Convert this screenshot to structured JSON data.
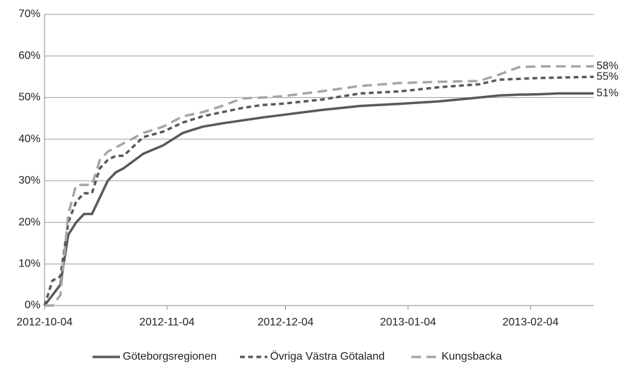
{
  "chart_data": {
    "type": "line",
    "x": [
      "2012-10-04",
      "2012-10-06",
      "2012-10-08",
      "2012-10-10",
      "2012-10-12",
      "2012-10-14",
      "2012-10-16",
      "2012-10-18",
      "2012-10-20",
      "2012-10-22",
      "2012-10-24",
      "2012-10-29",
      "2012-11-03",
      "2012-11-08",
      "2012-11-13",
      "2012-11-18",
      "2012-11-23",
      "2012-11-28",
      "2012-12-03",
      "2012-12-13",
      "2012-12-23",
      "2013-01-02",
      "2013-01-12",
      "2013-01-22",
      "2013-01-27",
      "2013-02-01",
      "2013-02-06",
      "2013-02-11",
      "2013-02-20"
    ],
    "series": [
      {
        "name": "Göteborgsregionen",
        "color": "#595959",
        "dash": "solid",
        "values": [
          0,
          2.5,
          5,
          17,
          20,
          22,
          22,
          26,
          30,
          32,
          33,
          36.5,
          38.5,
          41.5,
          43,
          43.8,
          44.5,
          45.2,
          45.8,
          47,
          48,
          48.5,
          49.1,
          50,
          50.5,
          50.7,
          50.8,
          51,
          51
        ]
      },
      {
        "name": "Övriga Västra Götaland",
        "color": "#595959",
        "dash": "dashed",
        "values": [
          0,
          6,
          7,
          20,
          25,
          27,
          27,
          33,
          35,
          36,
          36,
          40.5,
          41.8,
          44,
          45.5,
          46.5,
          47.5,
          48.2,
          48.5,
          49.5,
          51,
          51.5,
          52.5,
          53.2,
          54.3,
          54.5,
          54.7,
          54.8,
          55
        ]
      },
      {
        "name": "Kungsbacka",
        "color": "#a6a6a6",
        "dash": "long-dash",
        "values": [
          0,
          0,
          2.5,
          22,
          29,
          29,
          29,
          35,
          37,
          38,
          39,
          41.5,
          43,
          45.5,
          46.5,
          48,
          49.8,
          50,
          50.3,
          51.5,
          52.8,
          53.5,
          53.8,
          54,
          55.5,
          57.3,
          57.5,
          57.5,
          57.5
        ]
      }
    ],
    "annotations": [
      {
        "text": "58%",
        "x": "2013-02-20",
        "y": 57.5
      },
      {
        "text": "55%",
        "x": "2013-02-20",
        "y": 55
      },
      {
        "text": "51%",
        "x": "2013-02-20",
        "y": 51
      }
    ],
    "xlim": [
      "2012-10-04",
      "2013-02-20"
    ],
    "xticks": [
      "2012-10-04",
      "2012-11-04",
      "2012-12-04",
      "2013-01-04",
      "2013-02-04"
    ],
    "ylim": [
      0,
      70
    ],
    "yticks": [
      {
        "value": 0,
        "label": "0%"
      },
      {
        "value": 10,
        "label": "10%"
      },
      {
        "value": 20,
        "label": "20%"
      },
      {
        "value": 30,
        "label": "30%"
      },
      {
        "value": 40,
        "label": "40%"
      },
      {
        "value": 50,
        "label": "50%"
      },
      {
        "value": 60,
        "label": "60%"
      },
      {
        "value": 70,
        "label": "70%"
      }
    ],
    "grid": true,
    "legend": "bottom"
  }
}
